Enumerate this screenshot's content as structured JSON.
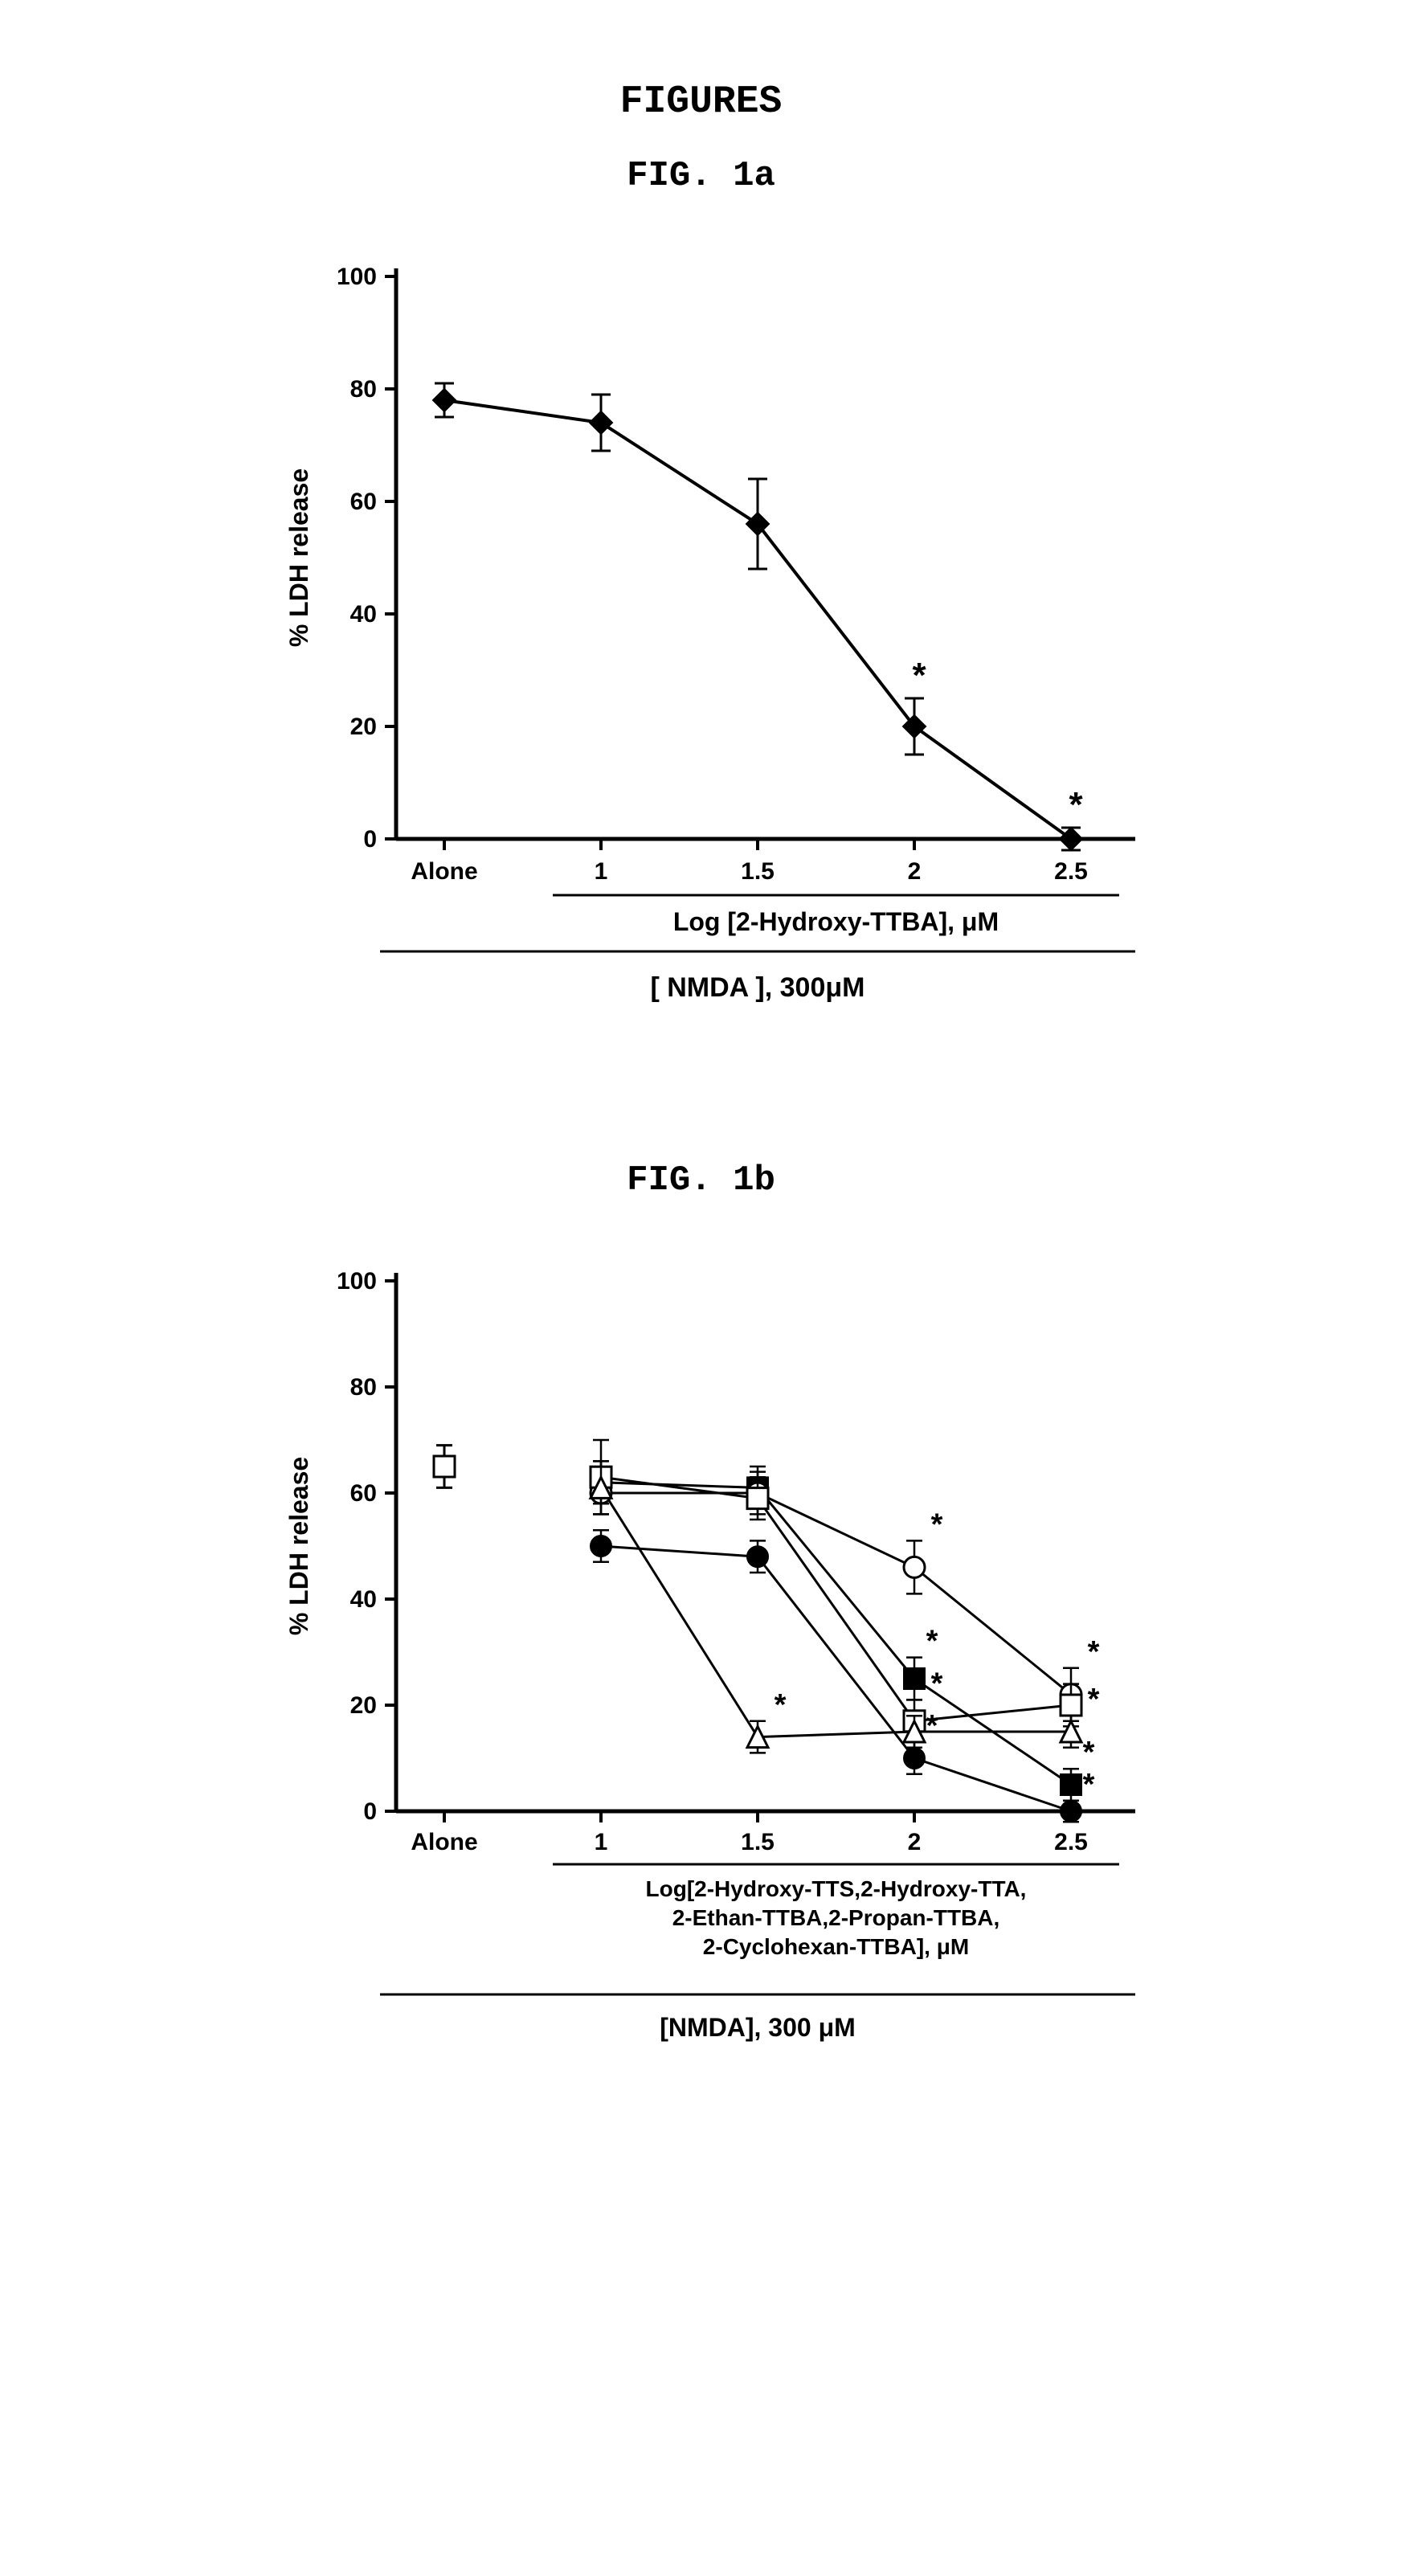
{
  "headings": {
    "figures": "FIGURES",
    "fig1a": "FIG. 1a",
    "fig1b": "FIG. 1b"
  },
  "chart_a": {
    "type": "line-errorbar",
    "ylabel": "% LDH release",
    "ylim": [
      0,
      100
    ],
    "yticks": [
      0,
      20,
      40,
      60,
      80,
      100
    ],
    "xtick_labels": [
      "Alone",
      "1",
      "1.5",
      "2",
      "2.5"
    ],
    "sub_caption": "Log [2-Hydroxy-TTBA], μM",
    "bottom_caption": "[ NMDA ], 300μM",
    "series": {
      "marker": "diamond-filled",
      "color": "#000000",
      "points": [
        {
          "x": 0,
          "y": 78,
          "err": 3
        },
        {
          "x": 1,
          "y": 74,
          "err": 5
        },
        {
          "x": 2,
          "y": 56,
          "err": 8
        },
        {
          "x": 3,
          "y": 20,
          "err": 5,
          "star": true
        },
        {
          "x": 4,
          "y": 0,
          "err": 2,
          "star": true
        }
      ]
    },
    "axis_fontsize": 32,
    "tick_fontsize": 30,
    "caption_fontsize": 32,
    "line_width": 4,
    "marker_size": 14,
    "errorbar_cap": 12
  },
  "chart_b": {
    "type": "line-errorbar-multi",
    "ylabel": "% LDH release",
    "ylim": [
      0,
      100
    ],
    "yticks": [
      0,
      20,
      40,
      60,
      80,
      100
    ],
    "xtick_labels": [
      "Alone",
      "1",
      "1.5",
      "2",
      "2.5"
    ],
    "sub_caption_lines": [
      "Log[2-Hydroxy-TTS,2-Hydroxy-TTA,",
      "2-Ethan-TTBA,2-Propan-TTBA,",
      "2-Cyclohexan-TTBA], μM"
    ],
    "bottom_caption": "[NMDA], 300 μM",
    "alone_point": {
      "y": 65,
      "err": 4,
      "marker": "square-open"
    },
    "series": [
      {
        "name": "filled-circle",
        "marker": "circle-filled",
        "color": "#000000",
        "points": [
          {
            "x": 1,
            "y": 50,
            "err": 3
          },
          {
            "x": 2,
            "y": 48,
            "err": 3
          },
          {
            "x": 3,
            "y": 10,
            "err": 3,
            "star": true
          },
          {
            "x": 4,
            "y": 0,
            "err": 2,
            "star": true
          }
        ]
      },
      {
        "name": "filled-square",
        "marker": "square-filled",
        "color": "#000000",
        "points": [
          {
            "x": 1,
            "y": 62,
            "err": 4
          },
          {
            "x": 2,
            "y": 61,
            "err": 4
          },
          {
            "x": 3,
            "y": 25,
            "err": 4,
            "star": true
          },
          {
            "x": 4,
            "y": 5,
            "err": 3,
            "star": true
          }
        ]
      },
      {
        "name": "open-circle",
        "marker": "circle-open",
        "color": "#000000",
        "points": [
          {
            "x": 1,
            "y": 60,
            "err": 4
          },
          {
            "x": 2,
            "y": 60,
            "err": 4
          },
          {
            "x": 3,
            "y": 46,
            "err": 5,
            "star": true
          },
          {
            "x": 4,
            "y": 22,
            "err": 5,
            "star": true
          }
        ]
      },
      {
        "name": "open-square",
        "marker": "square-open",
        "color": "#000000",
        "points": [
          {
            "x": 1,
            "y": 63,
            "err": 7
          },
          {
            "x": 2,
            "y": 59,
            "err": 4
          },
          {
            "x": 3,
            "y": 17,
            "err": 4,
            "star": true
          },
          {
            "x": 4,
            "y": 20,
            "err": 4
          }
        ]
      },
      {
        "name": "open-triangle",
        "marker": "triangle-open",
        "color": "#000000",
        "points": [
          {
            "x": 1,
            "y": 61,
            "err": 5
          },
          {
            "x": 2,
            "y": 14,
            "err": 3,
            "star": true
          },
          {
            "x": 3,
            "y": 15,
            "err": 3
          },
          {
            "x": 4,
            "y": 15,
            "err": 3,
            "star": true
          }
        ]
      }
    ],
    "axis_fontsize": 32,
    "tick_fontsize": 30,
    "caption_fontsize": 28,
    "line_width": 3,
    "marker_size": 13,
    "errorbar_cap": 10
  },
  "colors": {
    "black": "#000000",
    "white": "#ffffff"
  }
}
